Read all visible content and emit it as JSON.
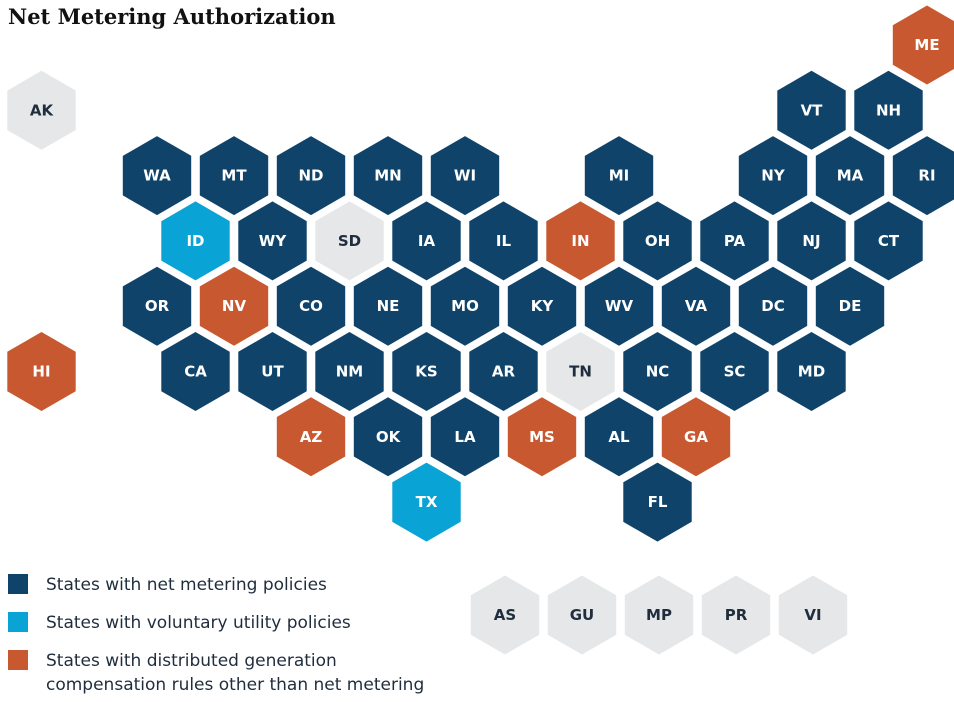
{
  "title": "Net Metering Authorization",
  "legend": [
    {
      "label": [
        "States with net metering policies"
      ],
      "color": "#0f436a"
    },
    {
      "label": [
        "States with voluntary utility policies"
      ],
      "color": "#0aa3d5"
    },
    {
      "label": [
        "States with distributed generation",
        "compensation rules other than net metering"
      ],
      "color": "#c8582f"
    }
  ],
  "states": [
    {
      "label": "ME",
      "color": "#c8582f"
    },
    {
      "label": "AK",
      "color": "#e6e7e8"
    },
    {
      "label": "VT",
      "color": "#0f436a"
    },
    {
      "label": "NH",
      "color": "#0f436a"
    },
    {
      "label": "WA",
      "color": "#0f436a"
    },
    {
      "label": "MT",
      "color": "#0f436a"
    },
    {
      "label": "ND",
      "color": "#0f436a"
    },
    {
      "label": "MN",
      "color": "#0f436a"
    },
    {
      "label": "WI",
      "color": "#0f436a"
    },
    {
      "label": "MI",
      "color": "#0f436a"
    },
    {
      "label": "NY",
      "color": "#0f436a"
    },
    {
      "label": "MA",
      "color": "#0f436a"
    },
    {
      "label": "RI",
      "color": "#0f436a"
    },
    {
      "label": "ID",
      "color": "#0aa3d5"
    },
    {
      "label": "WY",
      "color": "#0f436a"
    },
    {
      "label": "SD",
      "color": "#e6e7e8"
    },
    {
      "label": "IA",
      "color": "#0f436a"
    },
    {
      "label": "IL",
      "color": "#0f436a"
    },
    {
      "label": "IN",
      "color": "#c8582f"
    },
    {
      "label": "OH",
      "color": "#0f436a"
    },
    {
      "label": "PA",
      "color": "#0f436a"
    },
    {
      "label": "NJ",
      "color": "#0f436a"
    },
    {
      "label": "CT",
      "color": "#0f436a"
    },
    {
      "label": "OR",
      "color": "#0f436a"
    },
    {
      "label": "NV",
      "color": "#c8582f"
    },
    {
      "label": "CO",
      "color": "#0f436a"
    },
    {
      "label": "NE",
      "color": "#0f436a"
    },
    {
      "label": "MO",
      "color": "#0f436a"
    },
    {
      "label": "KY",
      "color": "#0f436a"
    },
    {
      "label": "WV",
      "color": "#0f436a"
    },
    {
      "label": "VA",
      "color": "#0f436a"
    },
    {
      "label": "DC",
      "color": "#0f436a"
    },
    {
      "label": "DE",
      "color": "#0f436a"
    },
    {
      "label": "HI",
      "color": "#c8582f"
    },
    {
      "label": "CA",
      "color": "#0f436a"
    },
    {
      "label": "UT",
      "color": "#0f436a"
    },
    {
      "label": "NM",
      "color": "#0f436a"
    },
    {
      "label": "KS",
      "color": "#0f436a"
    },
    {
      "label": "AR",
      "color": "#0f436a"
    },
    {
      "label": "TN",
      "color": "#e6e7e8"
    },
    {
      "label": "NC",
      "color": "#0f436a"
    },
    {
      "label": "SC",
      "color": "#0f436a"
    },
    {
      "label": "MD",
      "color": "#0f436a"
    },
    {
      "label": "AZ",
      "color": "#c8582f"
    },
    {
      "label": "OK",
      "color": "#0f436a"
    },
    {
      "label": "LA",
      "color": "#0f436a"
    },
    {
      "label": "MS",
      "color": "#c8582f"
    },
    {
      "label": "AL",
      "color": "#0f436a"
    },
    {
      "label": "GA",
      "color": "#c8582f"
    },
    {
      "label": "TX",
      "color": "#0aa3d5"
    },
    {
      "label": "FL",
      "color": "#0f436a"
    }
  ],
  "territories": [
    {
      "label": "AS",
      "color": "#e6e7e8"
    },
    {
      "label": "GU",
      "color": "#e6e7e8"
    },
    {
      "label": "MP",
      "color": "#e6e7e8"
    },
    {
      "label": "PR",
      "color": "#e6e7e8"
    },
    {
      "label": "VI",
      "color": "#e6e7e8"
    }
  ]
}
